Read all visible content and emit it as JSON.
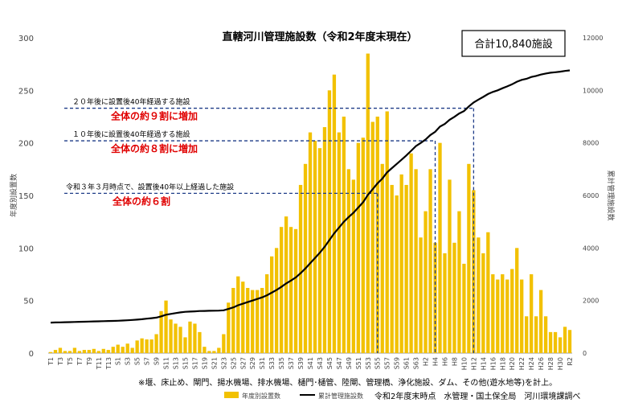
{
  "chart_data": {
    "type": "bar",
    "title": "直轄河川管理施設数（令和2年度末現在）",
    "total_box": "合計10,840施設",
    "ylabel_left": "年度別設置数",
    "ylabel_right": "累計管理施設数",
    "ylim_left": [
      0,
      300
    ],
    "ylim_right": [
      0,
      12000
    ],
    "yticks_left": [
      0,
      50,
      100,
      150,
      200,
      250,
      300
    ],
    "yticks_right": [
      0,
      2000,
      4000,
      6000,
      8000,
      10000,
      12000
    ],
    "categories": [
      "T1",
      "T2",
      "T3",
      "T4",
      "T5",
      "T6",
      "T7",
      "T8",
      "T9",
      "T10",
      "T11",
      "T12",
      "T13",
      "T14",
      "S1",
      "S2",
      "S3",
      "S4",
      "S5",
      "S6",
      "S7",
      "S8",
      "S9",
      "S10",
      "S11",
      "S12",
      "S13",
      "S14",
      "S15",
      "S16",
      "S17",
      "S18",
      "S19",
      "S20",
      "S21",
      "S22",
      "S23",
      "S24",
      "S25",
      "S26",
      "S27",
      "S28",
      "S29",
      "S30",
      "S31",
      "S32",
      "S33",
      "S34",
      "S35",
      "S36",
      "S37",
      "S38",
      "S39",
      "S40",
      "S41",
      "S42",
      "S43",
      "S44",
      "S45",
      "S46",
      "S47",
      "S48",
      "S49",
      "S50",
      "S51",
      "S52",
      "S53",
      "S54",
      "S55",
      "S56",
      "S57",
      "S58",
      "S59",
      "S60",
      "S61",
      "S62",
      "S63",
      "H1",
      "H2",
      "H3",
      "H4",
      "H5",
      "H6",
      "H7",
      "H8",
      "H9",
      "H10",
      "H11",
      "H12",
      "H13",
      "H14",
      "H15",
      "H16",
      "H17",
      "H18",
      "H19",
      "H20",
      "H21",
      "H22",
      "H23",
      "H24",
      "H25",
      "H26",
      "H27",
      "H28",
      "H29",
      "H30",
      "R1",
      "R2"
    ],
    "xtick_labels": [
      "T1",
      "T3",
      "T5",
      "T7",
      "T9",
      "T11",
      "T13",
      "S1",
      "S3",
      "S5",
      "S7",
      "S9",
      "S11",
      "S13",
      "S15",
      "S17",
      "S19",
      "S21",
      "S23",
      "S25",
      "S27",
      "S29",
      "S31",
      "S33",
      "S35",
      "S37",
      "S39",
      "S41",
      "S43",
      "S45",
      "S47",
      "S49",
      "S51",
      "S53",
      "S55",
      "S57",
      "S59",
      "S61",
      "S63",
      "H2",
      "H4",
      "H6",
      "H8",
      "H10",
      "H12",
      "H14",
      "H16",
      "H18",
      "H20",
      "H22",
      "H24",
      "H26",
      "H28",
      "H30",
      "R2"
    ],
    "series": [
      {
        "name": "年度別設置数",
        "type": "bar",
        "color": "#F2C100",
        "values": [
          1,
          3,
          5,
          2,
          2,
          5,
          2,
          3,
          3,
          4,
          2,
          4,
          3,
          6,
          8,
          6,
          9,
          5,
          12,
          14,
          13,
          13,
          18,
          40,
          50,
          32,
          28,
          25,
          15,
          30,
          28,
          20,
          6,
          2,
          2,
          5,
          18,
          48,
          62,
          73,
          68,
          62,
          60,
          60,
          62,
          75,
          92,
          100,
          120,
          130,
          120,
          118,
          160,
          180,
          210,
          202,
          195,
          215,
          250,
          265,
          210,
          225,
          175,
          165,
          200,
          205,
          285,
          220,
          225,
          180,
          230,
          160,
          150,
          170,
          160,
          190,
          175,
          110,
          135,
          175,
          105,
          200,
          95,
          165,
          105,
          135,
          85,
          180,
          155,
          110,
          95,
          115,
          75,
          70,
          75,
          70,
          80,
          100,
          70,
          35,
          75,
          35,
          60,
          35,
          20,
          20,
          15,
          25,
          22
        ]
      },
      {
        "name": "累計管理施設数",
        "type": "line",
        "color": "#000000",
        "values": [
          1160,
          1165,
          1170,
          1175,
          1180,
          1185,
          1190,
          1195,
          1200,
          1205,
          1210,
          1215,
          1220,
          1225,
          1230,
          1240,
          1250,
          1260,
          1275,
          1290,
          1310,
          1330,
          1350,
          1400,
          1460,
          1490,
          1520,
          1550,
          1570,
          1580,
          1590,
          1600,
          1605,
          1610,
          1612,
          1615,
          1630,
          1680,
          1740,
          1820,
          1880,
          1940,
          2000,
          2060,
          2120,
          2200,
          2300,
          2400,
          2520,
          2650,
          2760,
          2880,
          3040,
          3220,
          3420,
          3620,
          3820,
          4040,
          4300,
          4560,
          4780,
          5000,
          5180,
          5340,
          5540,
          5740,
          6020,
          6240,
          6460,
          6640,
          6880,
          7040,
          7200,
          7360,
          7520,
          7700,
          7880,
          8000,
          8130,
          8300,
          8420,
          8620,
          8720,
          8880,
          8990,
          9120,
          9210,
          9390,
          9540,
          9650,
          9750,
          9860,
          9940,
          10000,
          10080,
          10150,
          10230,
          10330,
          10400,
          10440,
          10510,
          10550,
          10600,
          10640,
          10670,
          10690,
          10710,
          10740,
          10760
        ]
      }
    ],
    "annotations": [
      {
        "text": "２０年後に設置後40年経過する施設",
        "emphasis": "全体の約９割に増加",
        "level": 233,
        "until": "H12"
      },
      {
        "text": "１０年後に設置後40年経過する施設",
        "emphasis": "全体の約８割に増加",
        "level": 202,
        "until": "H4"
      },
      {
        "text": "令和３年３月時点で、設置後40年以上経過した施設",
        "emphasis": "全体の約６割",
        "level": 152,
        "until": "S55"
      }
    ],
    "grid": false,
    "legend_position": "bottom"
  },
  "footnote": "※堰、床止め、閘門、揚水機場、排水機場、樋門･樋管、陸閘、管理橋、浄化施設、ダム、その他(遊水地等)を計上。",
  "source": "令和2年度末時点　水管理・国土保全局　河川環境課調べ",
  "colors": {
    "bar": "#F2C100",
    "line": "#000000",
    "emphasis": "#E00000",
    "guide": "#1F3C88"
  }
}
